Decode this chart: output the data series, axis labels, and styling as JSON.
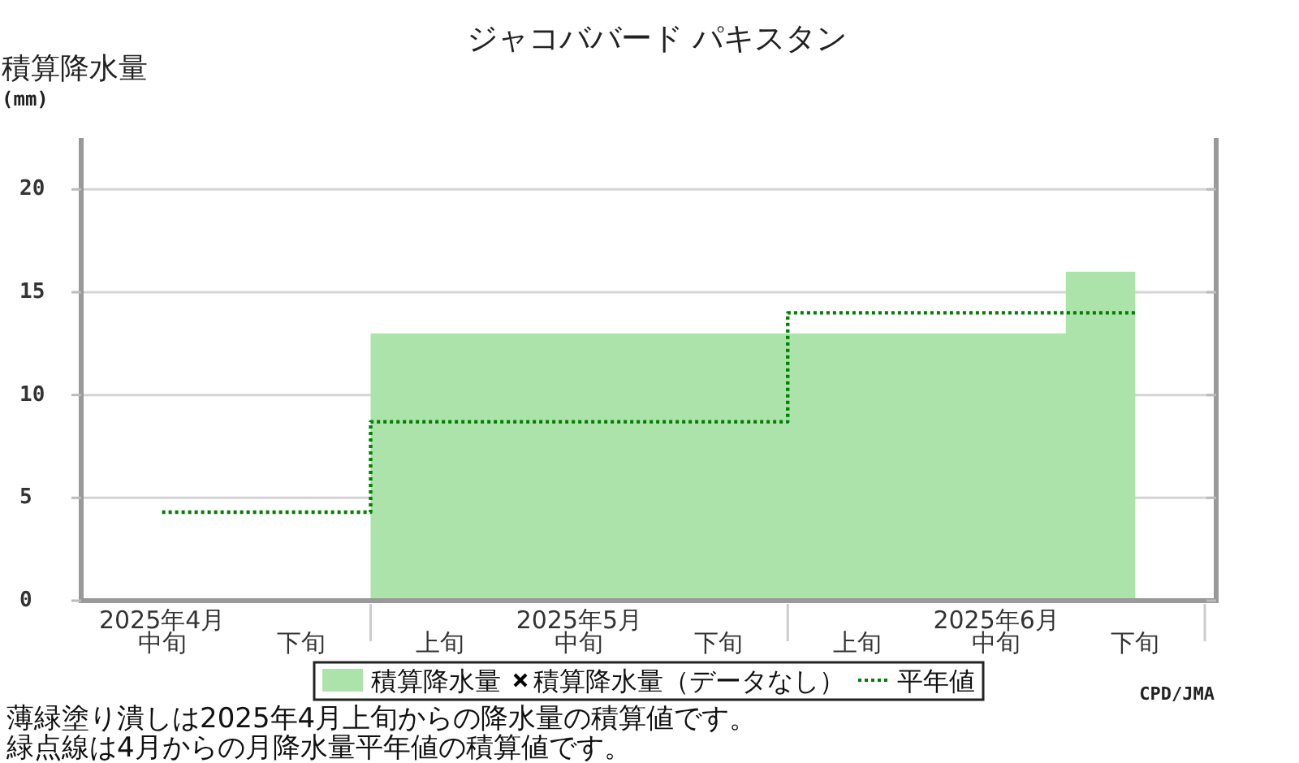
{
  "chart_data": {
    "type": "area",
    "title": "ジャコババード パキスタン",
    "ylabel": "積算降水量(mm)",
    "categories": [
      "2025年4月中旬",
      "下旬",
      "上旬",
      "2025年5月中旬",
      "下旬",
      "上旬",
      "2025年6月中旬",
      "下旬"
    ],
    "series": [
      {
        "name": "積算降水量",
        "color": "#abe3ab",
        "values": [
          0.1,
          0.1,
          13,
          13,
          13,
          13,
          13,
          16
        ]
      },
      {
        "name": "積算降水量（データなし）",
        "type": "scatter",
        "marker": "cross",
        "color": "#000000",
        "values": [
          null,
          null,
          null,
          null,
          null,
          null,
          null,
          null
        ]
      },
      {
        "name": "平年値",
        "type": "step",
        "color": "#008000",
        "line_style": "dotted",
        "values": [
          4.3,
          4.3,
          8.7,
          8.7,
          8.7,
          14.0,
          14.0,
          14.0
        ]
      }
    ],
    "ylim": [
      0,
      22.5
    ],
    "yticks": [
      0,
      5,
      10,
      15,
      20
    ],
    "grid": "y",
    "legend": "bottom",
    "annotations": [
      "CPD/JMA",
      "薄緑塗り潰しは2025年4月上旬からの降水量の積算値です。",
      "緑点線は4月からの月降水量平年値の積算値です。"
    ]
  }
}
